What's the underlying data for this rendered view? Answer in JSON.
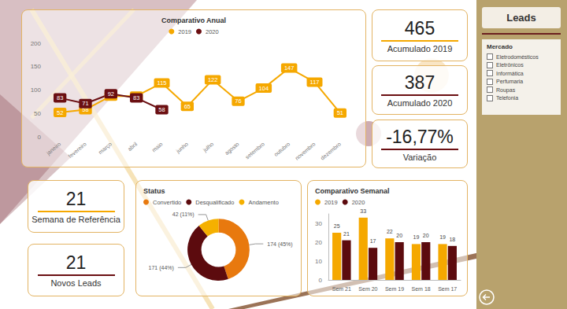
{
  "chart_data": [
    {
      "type": "line",
      "title": "Comparativo Anual",
      "categories": [
        "janeiro",
        "fevereiro",
        "março",
        "abril",
        "maio",
        "junho",
        "julho",
        "agosto",
        "setembro",
        "outubro",
        "novembro",
        "dezembro"
      ],
      "series": [
        {
          "name": "2019",
          "color": "#f5a800",
          "values": [
            52,
            58,
            87,
            87,
            115,
            65,
            122,
            76,
            104,
            147,
            117,
            51
          ]
        },
        {
          "name": "2020",
          "color": "#6b0f12",
          "values": [
            83,
            71,
            92,
            83,
            58,
            null,
            null,
            null,
            null,
            null,
            null,
            null
          ]
        }
      ],
      "ylim": [
        0,
        200
      ],
      "yticks": [
        0,
        50,
        100,
        150,
        200
      ],
      "grid": false,
      "legend": "top",
      "data_labels": true,
      "marker": "circle"
    },
    {
      "type": "pie",
      "title": "Status",
      "categories": [
        "Convertido",
        "Desqualificado",
        "Andamento"
      ],
      "values": [
        174,
        171,
        42
      ],
      "value_labels": [
        "174 (45%)",
        "171 (44%)",
        "42 (11%)"
      ],
      "colors": [
        "#e8790e",
        "#5c0b0e",
        "#f5b000"
      ],
      "legend": "top-left",
      "data_labels": true
    },
    {
      "type": "bar",
      "title": "Comparativo Semanal",
      "categories": [
        "Sem 21",
        "Sem 20",
        "Sem 19",
        "Sem 18",
        "Sem 17"
      ],
      "series": [
        {
          "name": "2019",
          "color": "#f5a800",
          "values": [
            25,
            33,
            22,
            19,
            19
          ]
        },
        {
          "name": "2020",
          "color": "#5c0b0e",
          "values": [
            21,
            17,
            20,
            20,
            18
          ]
        }
      ],
      "ylim": [
        0,
        35
      ],
      "yticks": [
        0,
        10,
        20,
        30
      ],
      "grid": false,
      "legend": "top-left",
      "data_labels": true
    }
  ],
  "cards": [
    {
      "value": 465,
      "label": "Acumulado 2019",
      "color": "#f5a800"
    },
    {
      "value": 387,
      "label": "Acumulado 2020",
      "color": "#6b0f12"
    },
    {
      "value": "-16,77%",
      "label": "Variação",
      "color": "#6b0f12"
    },
    {
      "value": 21,
      "label": "Semana de Referência",
      "color": "#f5a800"
    },
    {
      "value": 21,
      "label": "Novos Leads",
      "color": "#6b0f12"
    }
  ],
  "slicer": {
    "title": "Leads",
    "heading": "Mercado",
    "items": [
      "Eletrodomésticos",
      "Eletrônicos",
      "Informática",
      "Perfumaria",
      "Roupas",
      "Telefonia"
    ]
  }
}
